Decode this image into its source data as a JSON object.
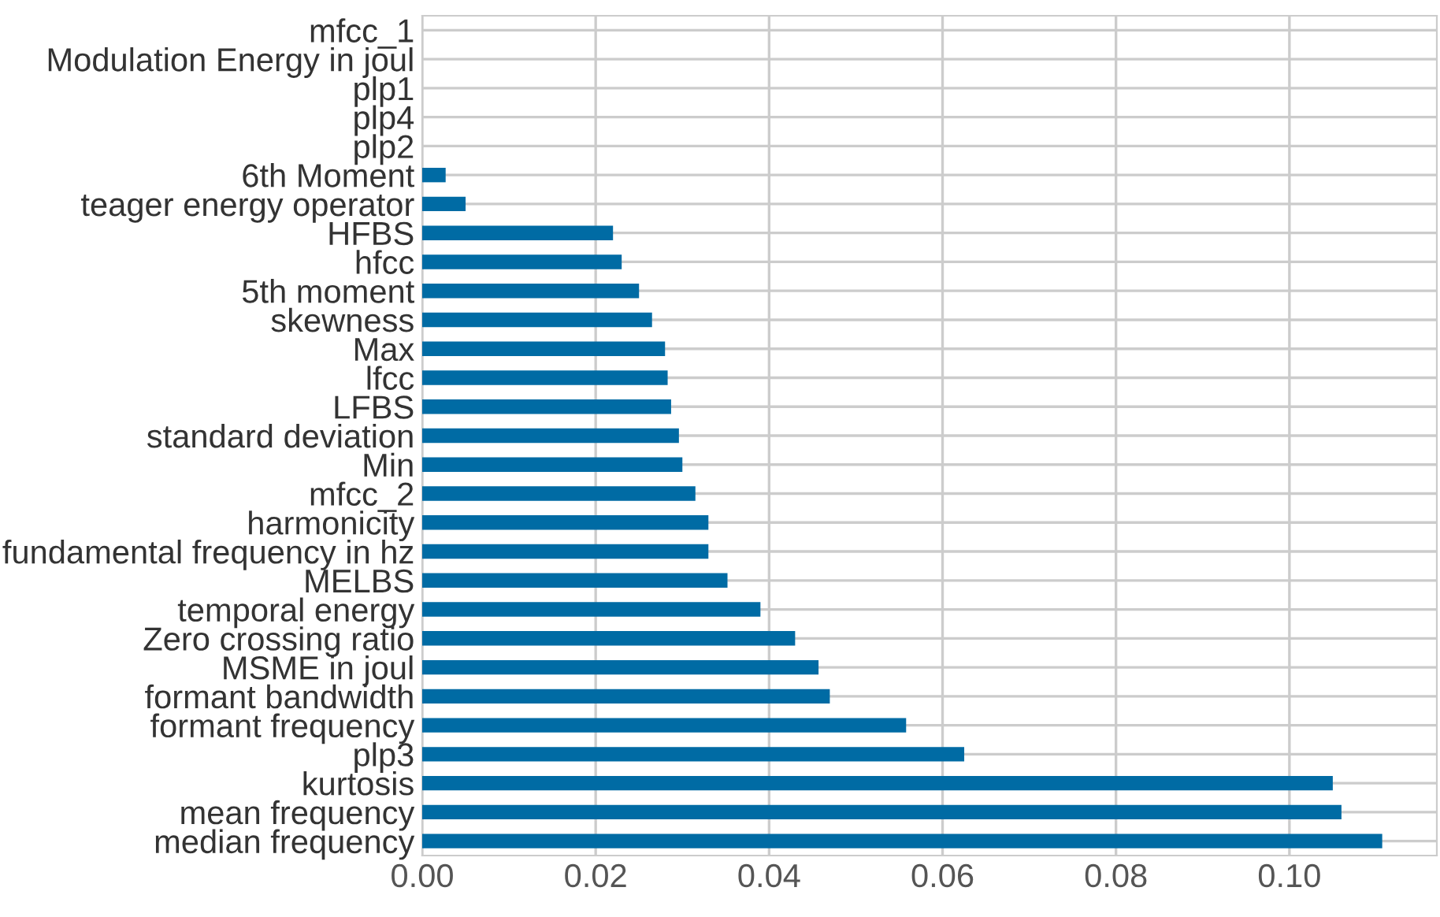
{
  "chart_data": {
    "type": "bar",
    "orientation": "horizontal",
    "categories": [
      "mfcc_1",
      "Modulation Energy in joul",
      "plp1",
      "plp4",
      "plp2",
      "6th Moment",
      "teager energy operator",
      "HFBS",
      "hfcc",
      "5th moment",
      "skewness",
      "Max",
      "lfcc",
      "LFBS",
      "standard deviation",
      "Min",
      "mfcc_2",
      "harmonicity",
      "fundamental frequency in hz",
      "MELBS",
      "temporal energy",
      "Zero crossing ratio",
      "MSME in joul",
      "formant bandwidth",
      "formant frequency",
      "plp3",
      "kurtosis",
      "mean frequency",
      "median frequency"
    ],
    "values": [
      0,
      0,
      0,
      0,
      0,
      0.0027,
      0.005,
      0.022,
      0.023,
      0.025,
      0.0265,
      0.028,
      0.0283,
      0.0287,
      0.0296,
      0.03,
      0.0315,
      0.033,
      0.033,
      0.0352,
      0.039,
      0.043,
      0.0457,
      0.047,
      0.0558,
      0.0625,
      0.105,
      0.106,
      0.1107
    ],
    "color": "#006ba4",
    "xlim": [
      0,
      0.117
    ],
    "xticks": [
      {
        "value": 0,
        "label": "0.00"
      },
      {
        "value": 0.02,
        "label": "0.02"
      },
      {
        "value": 0.04,
        "label": "0.04"
      },
      {
        "value": 0.06,
        "label": "0.06"
      },
      {
        "value": 0.08,
        "label": "0.08"
      },
      {
        "value": 0.1,
        "label": "0.10"
      }
    ],
    "grid": true
  }
}
